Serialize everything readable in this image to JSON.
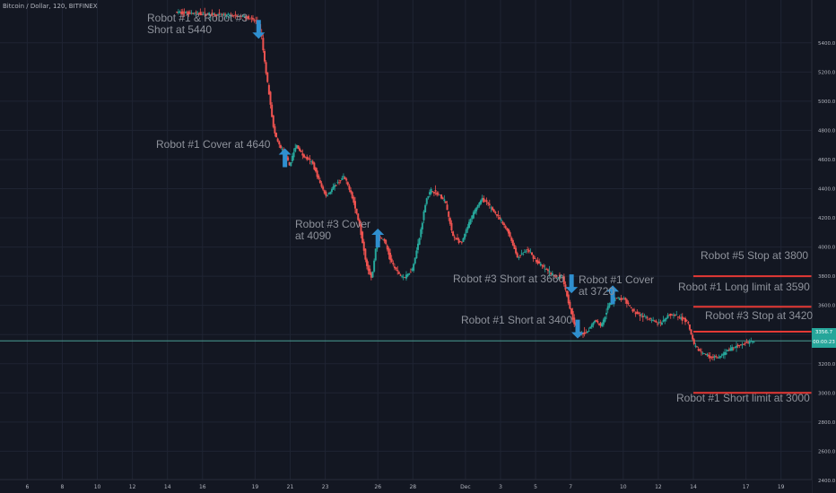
{
  "symbol_title": "Bitcoin / Dollar, 120, BITFINEX",
  "colors": {
    "background": "#131722",
    "grid": "#1f2433",
    "up": "#26a69a",
    "down": "#ef5350",
    "annotation_text": "#8e929b",
    "arrow": "#2f8fcf",
    "level_line": "#e53935",
    "last_price_line": "#4a9e94"
  },
  "last_price": {
    "value": "3356.7",
    "countdown": "00:00:23"
  },
  "annotations": [
    {
      "id": "robot1-robot3-short",
      "text": "Robot #1 & Robot #3\nShort at 5440"
    },
    {
      "id": "robot1-cover-4640",
      "text": "Robot #1 Cover at 4640"
    },
    {
      "id": "robot3-cover-4090",
      "text": "Robot #3 Cover\nat 4090"
    },
    {
      "id": "robot3-short-3660",
      "text": "Robot #3 Short at 3660"
    },
    {
      "id": "robot1-cover-3720",
      "text": "Robot #1 Cover\nat 3720"
    },
    {
      "id": "robot1-short-3400",
      "text": "Robot #1 Short at 3400"
    },
    {
      "id": "robot5-stop",
      "text": "Robot #5 Stop at 3800"
    },
    {
      "id": "robot1-long-limit",
      "text": "Robot #1 Long limit at 3590"
    },
    {
      "id": "robot3-stop",
      "text": "Robot #3 Stop at 3420"
    },
    {
      "id": "robot1-short-limit",
      "text": "Robot #1 Short limit at 3000"
    }
  ],
  "arrows": [
    {
      "dir": "down",
      "day": 19.2,
      "price": 5465
    },
    {
      "dir": "up",
      "day": 20.7,
      "price": 4640
    },
    {
      "dir": "up",
      "day": 26,
      "price": 4090
    },
    {
      "dir": "down",
      "day": 37.05,
      "price": 3720
    },
    {
      "dir": "up",
      "day": 39.4,
      "price": 3700
    },
    {
      "dir": "down",
      "day": 37.4,
      "price": 3410
    }
  ],
  "levels": [
    {
      "price": 3800,
      "from_day": 44
    },
    {
      "price": 3590,
      "from_day": 44
    },
    {
      "price": 3420,
      "from_day": 44
    },
    {
      "price": 3000,
      "from_day": 44
    }
  ],
  "chart_data": {
    "type": "candlestick",
    "x_ticks": [
      {
        "day": 6,
        "label": "6"
      },
      {
        "day": 8,
        "label": "8"
      },
      {
        "day": 10,
        "label": "10"
      },
      {
        "day": 12,
        "label": "12"
      },
      {
        "day": 14,
        "label": "14"
      },
      {
        "day": 16,
        "label": "16"
      },
      {
        "day": 19,
        "label": "19"
      },
      {
        "day": 21,
        "label": "21"
      },
      {
        "day": 23,
        "label": "23"
      },
      {
        "day": 26,
        "label": "26"
      },
      {
        "day": 28,
        "label": "28"
      },
      {
        "day": 31,
        "label": "Dec"
      },
      {
        "day": 33,
        "label": "3"
      },
      {
        "day": 35,
        "label": "5"
      },
      {
        "day": 37,
        "label": "7"
      },
      {
        "day": 40,
        "label": "10"
      },
      {
        "day": 42,
        "label": "12"
      },
      {
        "day": 44,
        "label": "14"
      },
      {
        "day": 47,
        "label": "17"
      },
      {
        "day": 49,
        "label": "19"
      }
    ],
    "y_ticks": [
      2400,
      2600,
      2800,
      3000,
      3200,
      3400,
      3600,
      3800,
      4000,
      4200,
      4400,
      4600,
      4800,
      5000,
      5200,
      5400
    ],
    "y_tick_labels": [
      "2400.0",
      "2600.0",
      "2800.0",
      "3000.0",
      "3200.0",
      "3400.0",
      "3600.0",
      "3800.0",
      "4000.0",
      "4200.0",
      "4400.0",
      "4600.0",
      "4800.0",
      "5000.0",
      "5200.0",
      "5400.0"
    ],
    "ylim": [
      2375,
      5620
    ],
    "xlim": [
      4.6,
      50.5
    ],
    "price_path": [
      [
        14.5,
        5610
      ],
      [
        16,
        5600
      ],
      [
        18.5,
        5580
      ],
      [
        19.2,
        5540
      ],
      [
        19.4,
        5450
      ],
      [
        19.6,
        5250
      ],
      [
        19.9,
        5000
      ],
      [
        20.1,
        4800
      ],
      [
        20.4,
        4700
      ],
      [
        20.7,
        4640
      ],
      [
        21,
        4560
      ],
      [
        21.4,
        4700
      ],
      [
        21.8,
        4620
      ],
      [
        22.3,
        4580
      ],
      [
        22.8,
        4420
      ],
      [
        23.1,
        4350
      ],
      [
        23.6,
        4420
      ],
      [
        24.1,
        4480
      ],
      [
        24.5,
        4380
      ],
      [
        25,
        4150
      ],
      [
        25.4,
        3880
      ],
      [
        25.7,
        3780
      ],
      [
        26,
        4070
      ],
      [
        26.4,
        4050
      ],
      [
        26.8,
        3900
      ],
      [
        27.2,
        3820
      ],
      [
        27.6,
        3790
      ],
      [
        28,
        3850
      ],
      [
        28.4,
        4050
      ],
      [
        28.8,
        4330
      ],
      [
        29.1,
        4390
      ],
      [
        29.5,
        4360
      ],
      [
        29.9,
        4310
      ],
      [
        30.3,
        4080
      ],
      [
        30.8,
        4020
      ],
      [
        31.2,
        4150
      ],
      [
        31.6,
        4260
      ],
      [
        32,
        4330
      ],
      [
        32.5,
        4270
      ],
      [
        33,
        4190
      ],
      [
        33.5,
        4100
      ],
      [
        34,
        3930
      ],
      [
        34.6,
        3980
      ],
      [
        35.1,
        3900
      ],
      [
        35.6,
        3850
      ],
      [
        36.1,
        3800
      ],
      [
        36.6,
        3790
      ],
      [
        37,
        3580
      ],
      [
        37.3,
        3460
      ],
      [
        37.6,
        3400
      ],
      [
        38,
        3420
      ],
      [
        38.4,
        3500
      ],
      [
        38.8,
        3460
      ],
      [
        39.2,
        3600
      ],
      [
        39.6,
        3650
      ],
      [
        40.1,
        3640
      ],
      [
        40.6,
        3560
      ],
      [
        41.1,
        3530
      ],
      [
        41.6,
        3500
      ],
      [
        42.2,
        3470
      ],
      [
        42.7,
        3540
      ],
      [
        43.2,
        3520
      ],
      [
        43.7,
        3490
      ],
      [
        44.1,
        3320
      ],
      [
        44.6,
        3270
      ],
      [
        45,
        3250
      ],
      [
        45.5,
        3240
      ],
      [
        46,
        3290
      ],
      [
        46.5,
        3320
      ],
      [
        47,
        3340
      ],
      [
        47.5,
        3356.7
      ]
    ]
  }
}
